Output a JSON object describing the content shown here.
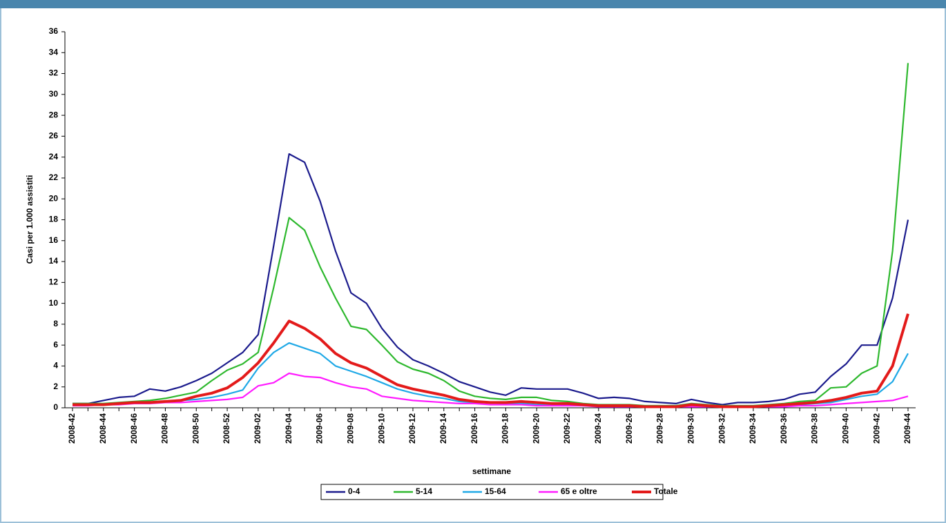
{
  "chart_data": {
    "type": "line",
    "y_label": "Casi per 1.000 assistiti",
    "x_label": "settimane",
    "categories": [
      "2008-42",
      null,
      "2008-44",
      null,
      "2008-46",
      null,
      "2008-48",
      null,
      "2008-50",
      null,
      "2008-52",
      null,
      "2009-02",
      null,
      "2009-04",
      null,
      "2009-06",
      null,
      "2009-08",
      null,
      "2009-10",
      null,
      "2009-12",
      null,
      "2009-14",
      null,
      "2009-16",
      null,
      "2009-18",
      null,
      "2009-20",
      null,
      "2009-22",
      null,
      "2009-24",
      null,
      "2009-26",
      null,
      "2009-28",
      null,
      "2009-30",
      null,
      "2009-32",
      null,
      "2009-34",
      null,
      "2009-36",
      null,
      "2009-38",
      null,
      "2009-40",
      null,
      "2009-42",
      null,
      "2009-44"
    ],
    "series": [
      {
        "name": "0-4",
        "color": "#1a1a8c",
        "values": [
          0.4,
          0.4,
          0.7,
          1.0,
          1.1,
          1.8,
          1.6,
          2.0,
          2.6,
          3.3,
          4.3,
          5.3,
          7.0,
          15.5,
          24.3,
          23.5,
          19.8,
          15.0,
          11.0,
          10.0,
          7.6,
          5.8,
          4.6,
          4.0,
          3.3,
          2.5,
          2.0,
          1.5,
          1.2,
          1.9,
          1.8,
          1.8,
          1.8,
          1.4,
          0.9,
          1.0,
          0.9,
          0.6,
          0.5,
          0.4,
          0.8,
          0.5,
          0.3,
          0.5,
          0.5,
          0.6,
          0.8,
          1.3,
          1.5,
          3.0,
          4.2,
          6.0,
          6.0,
          10.5,
          18.0
        ]
      },
      {
        "name": "5-14",
        "color": "#2db82d",
        "values": [
          0.4,
          0.4,
          0.4,
          0.5,
          0.6,
          0.7,
          0.9,
          1.2,
          1.5,
          2.6,
          3.6,
          4.2,
          5.3,
          11.5,
          18.2,
          17.0,
          13.5,
          10.5,
          7.8,
          7.5,
          6.0,
          4.4,
          3.7,
          3.3,
          2.6,
          1.6,
          1.1,
          0.9,
          0.8,
          1.0,
          1.0,
          0.7,
          0.6,
          0.4,
          0.3,
          0.3,
          0.3,
          0.2,
          0.2,
          0.2,
          0.4,
          0.3,
          0.2,
          0.2,
          0.2,
          0.3,
          0.4,
          0.6,
          0.7,
          1.9,
          2.0,
          3.3,
          4.0,
          15.0,
          33.0
        ]
      },
      {
        "name": "15-64",
        "color": "#1ea8e6",
        "values": [
          0.3,
          0.3,
          0.3,
          0.4,
          0.5,
          0.5,
          0.6,
          0.7,
          0.8,
          1.0,
          1.3,
          1.7,
          3.8,
          5.3,
          6.2,
          5.7,
          5.2,
          4.0,
          3.5,
          3.0,
          2.4,
          1.8,
          1.4,
          1.1,
          0.9,
          0.6,
          0.5,
          0.5,
          0.4,
          0.4,
          0.3,
          0.3,
          0.3,
          0.2,
          0.2,
          0.2,
          0.2,
          0.1,
          0.1,
          0.1,
          0.2,
          0.2,
          0.1,
          0.1,
          0.1,
          0.2,
          0.2,
          0.3,
          0.4,
          0.5,
          0.8,
          1.1,
          1.3,
          2.5,
          5.2
        ]
      },
      {
        "name": "65 e oltre",
        "color": "#ff1aff",
        "values": [
          0.2,
          0.2,
          0.3,
          0.3,
          0.4,
          0.4,
          0.5,
          0.5,
          0.6,
          0.7,
          0.8,
          1.0,
          2.1,
          2.4,
          3.3,
          3.0,
          2.9,
          2.4,
          2.0,
          1.8,
          1.1,
          0.9,
          0.7,
          0.6,
          0.5,
          0.4,
          0.4,
          0.3,
          0.3,
          0.3,
          0.2,
          0.2,
          0.2,
          0.2,
          0.1,
          0.1,
          0.1,
          0.1,
          0.1,
          0.1,
          0.1,
          0.1,
          0.1,
          0.1,
          0.1,
          0.1,
          0.1,
          0.2,
          0.2,
          0.3,
          0.4,
          0.5,
          0.6,
          0.7,
          1.1
        ]
      },
      {
        "name": "Totale",
        "color": "#e31a1a",
        "values": [
          0.3,
          0.3,
          0.3,
          0.4,
          0.5,
          0.5,
          0.6,
          0.7,
          1.1,
          1.4,
          1.9,
          2.9,
          4.3,
          6.2,
          8.3,
          7.6,
          6.6,
          5.2,
          4.3,
          3.8,
          3.0,
          2.2,
          1.8,
          1.5,
          1.2,
          0.8,
          0.6,
          0.5,
          0.5,
          0.6,
          0.5,
          0.4,
          0.4,
          0.3,
          0.2,
          0.2,
          0.2,
          0.1,
          0.1,
          0.1,
          0.3,
          0.2,
          0.1,
          0.1,
          0.1,
          0.2,
          0.3,
          0.4,
          0.5,
          0.7,
          1.0,
          1.4,
          1.6,
          4.0,
          9.0
        ]
      }
    ],
    "ylim": [
      0,
      36
    ],
    "yticks": [
      0,
      2,
      4,
      6,
      8,
      10,
      12,
      14,
      16,
      18,
      20,
      22,
      24,
      26,
      28,
      30,
      32,
      34,
      36
    ],
    "legend": "bottom"
  }
}
